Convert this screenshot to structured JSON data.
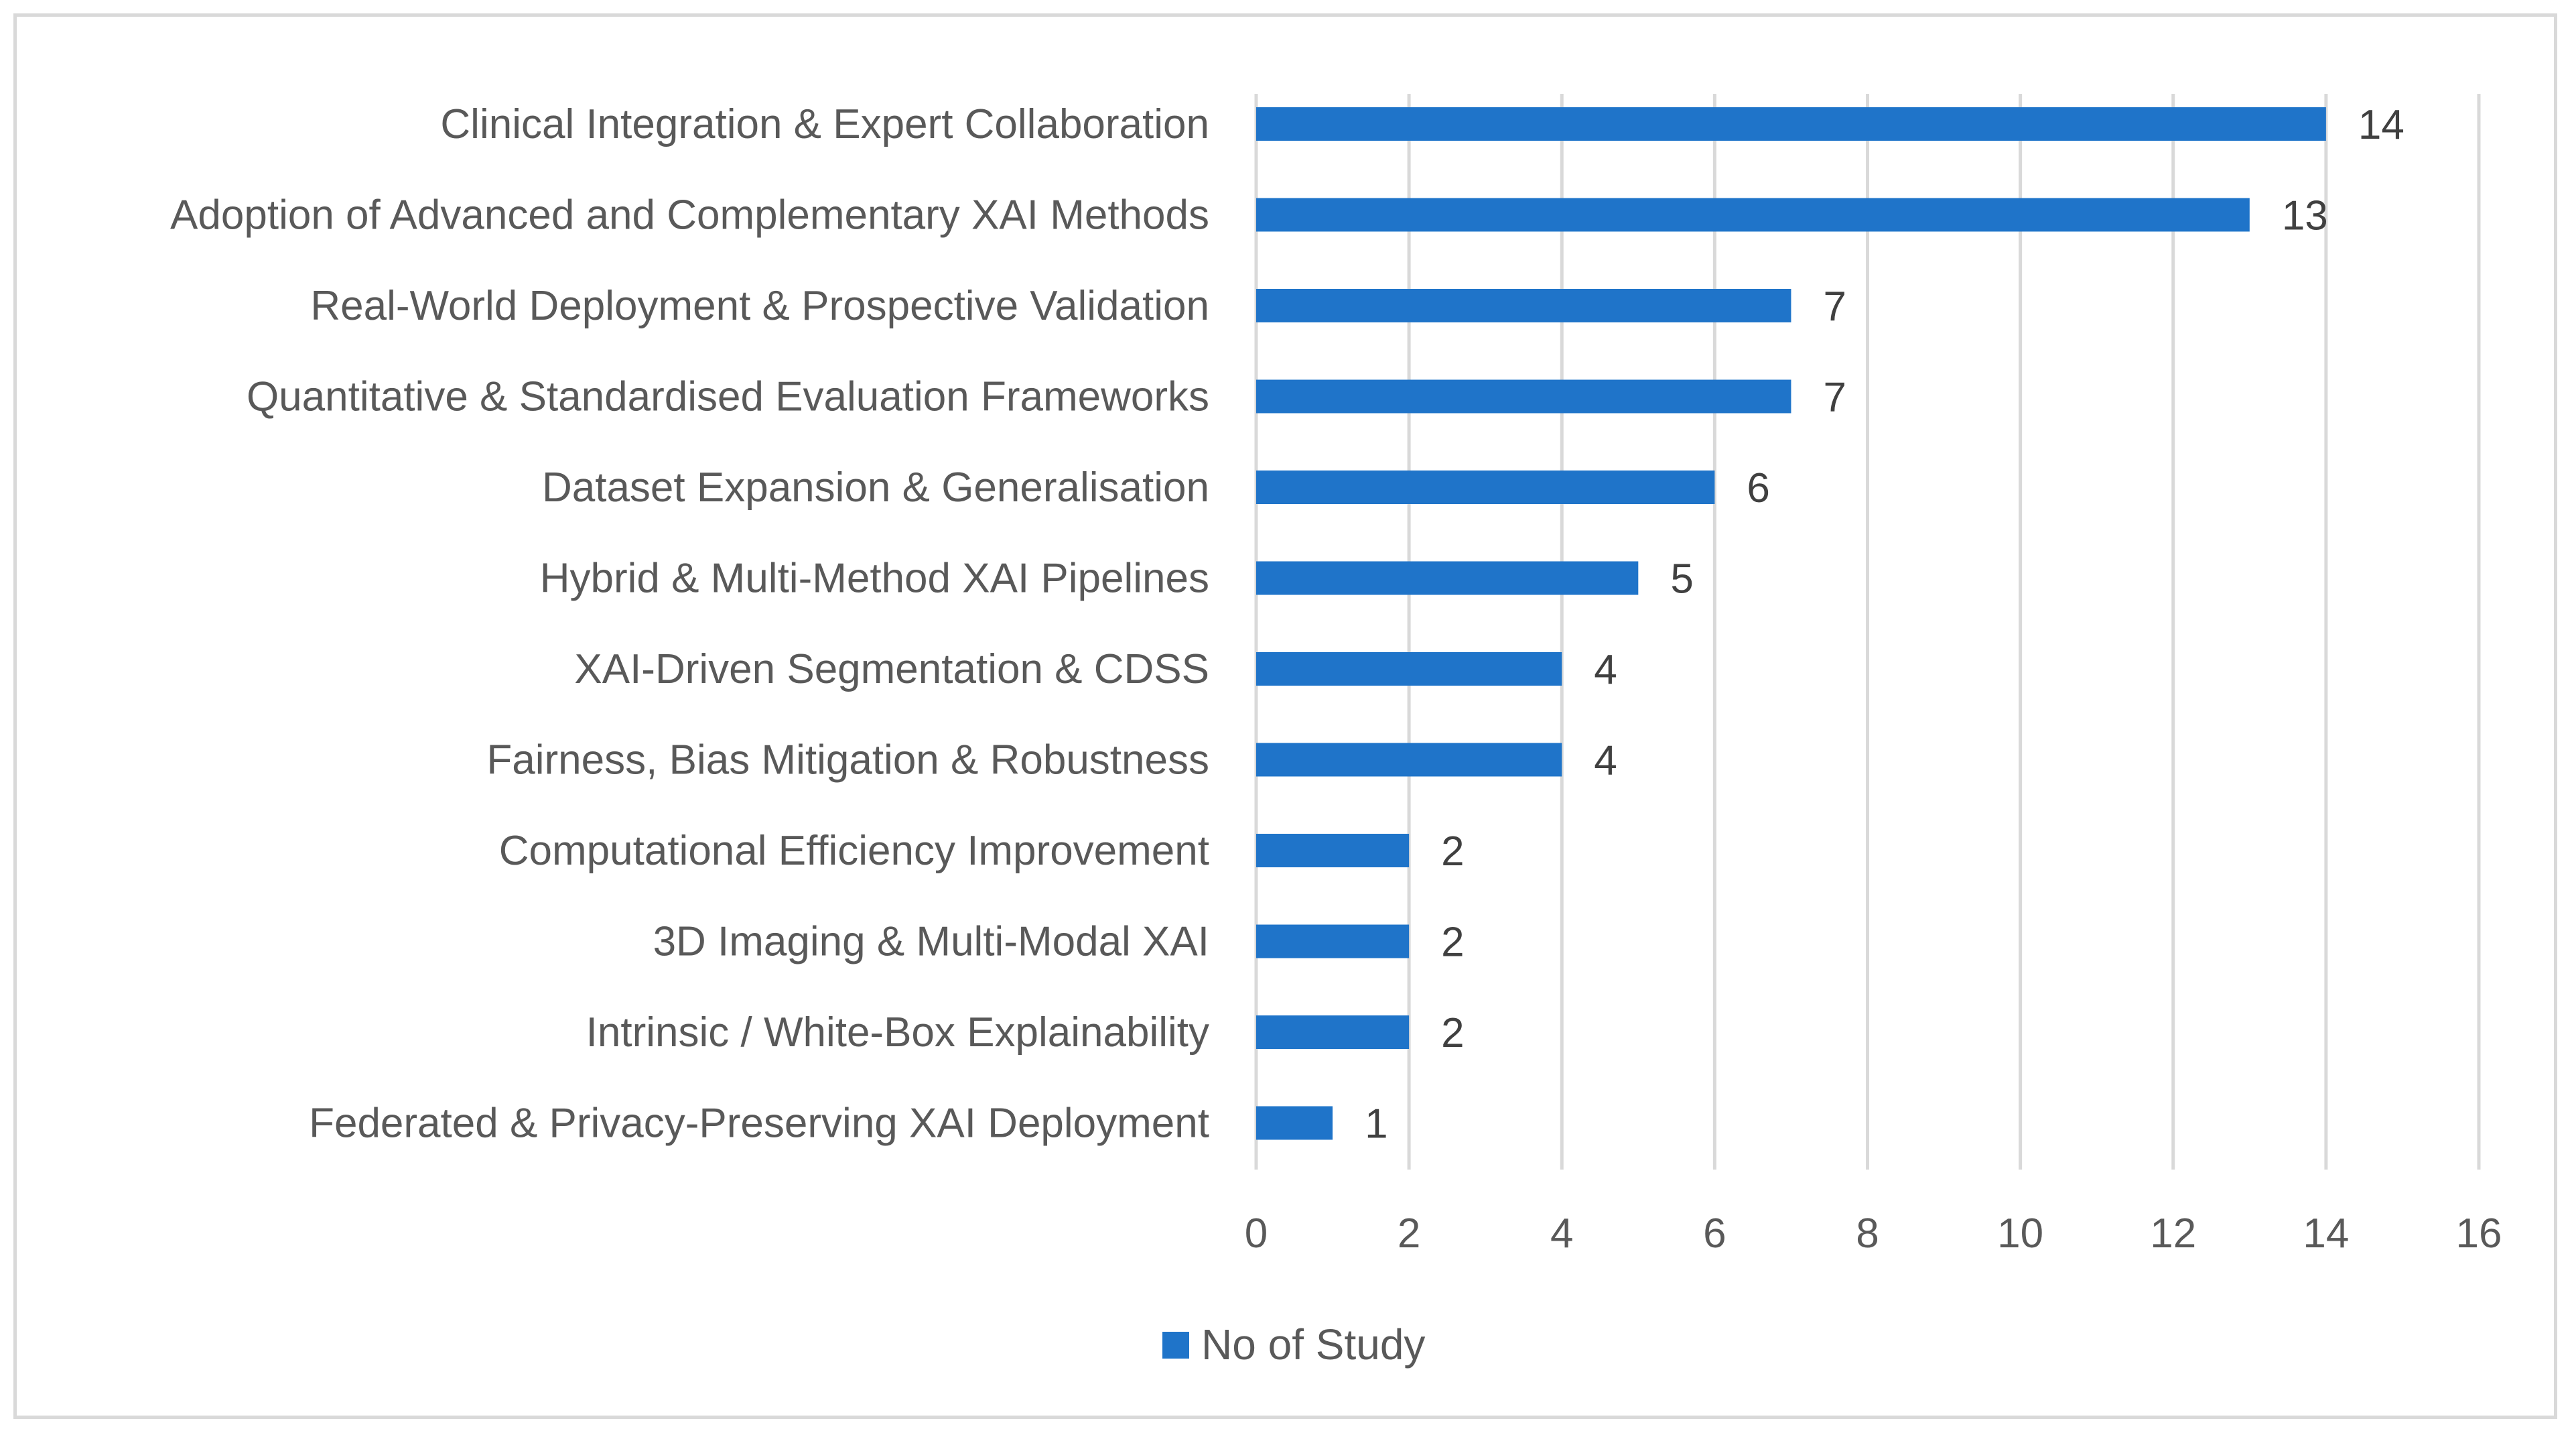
{
  "chart_data": {
    "type": "bar",
    "orientation": "horizontal",
    "categories": [
      "Clinical Integration & Expert Collaboration",
      "Adoption of Advanced and Complementary XAI Methods",
      "Real-World Deployment & Prospective Validation",
      "Quantitative & Standardised Evaluation Frameworks",
      "Dataset Expansion & Generalisation",
      "Hybrid & Multi-Method XAI Pipelines",
      "XAI-Driven Segmentation & CDSS",
      "Fairness, Bias Mitigation & Robustness",
      "Computational Efficiency Improvement",
      "3D Imaging & Multi-Modal XAI",
      "Intrinsic / White-Box Explainability",
      "Federated & Privacy-Preserving XAI Deployment"
    ],
    "series": [
      {
        "name": "No of Study",
        "values": [
          14,
          13,
          7,
          7,
          6,
          5,
          4,
          4,
          2,
          2,
          2,
          1
        ]
      }
    ],
    "xlim": [
      0,
      16
    ],
    "xticks": [
      "0",
      "2",
      "4",
      "6",
      "8",
      "10",
      "12",
      "14",
      "16"
    ],
    "grid": "vertical",
    "legend_position": "bottom",
    "data_labels": true,
    "bar_color": "#1f74c9"
  }
}
